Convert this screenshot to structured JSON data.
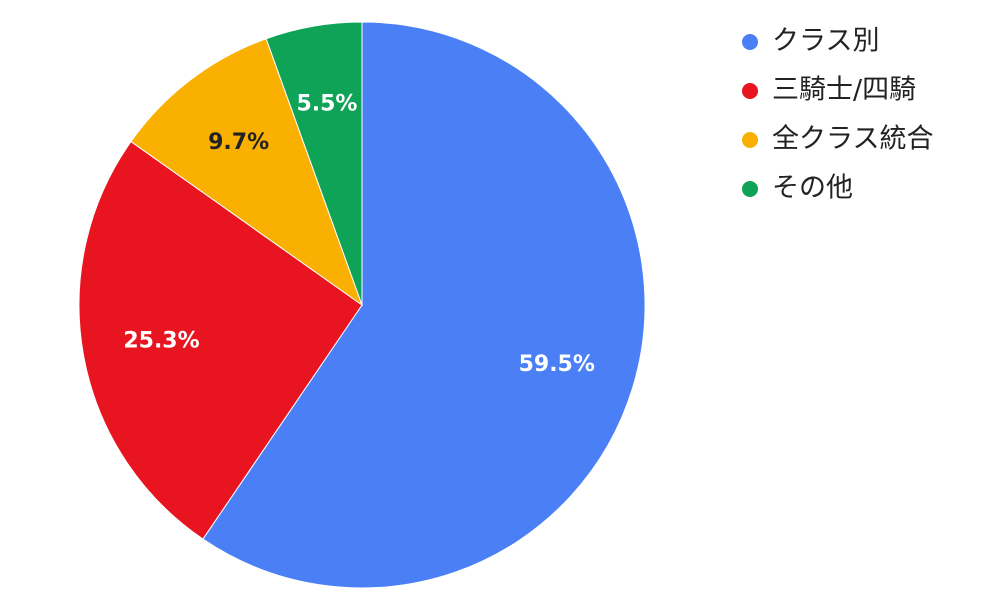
{
  "chart_data": {
    "type": "pie",
    "categories": [
      "クラス別",
      "三騎士/四騎",
      "全クラス統合",
      "その他"
    ],
    "values": [
      59.5,
      25.3,
      9.7,
      5.5
    ],
    "value_labels": [
      "59.5%",
      "25.3%",
      "9.7%",
      "5.5%"
    ],
    "colors": [
      "#4a7ff5",
      "#e8141f",
      "#f9b000",
      "#0ea356"
    ],
    "label_colors": [
      "#ffffff",
      "#ffffff",
      "#222222",
      "#ffffff"
    ],
    "legend": "top-right"
  }
}
